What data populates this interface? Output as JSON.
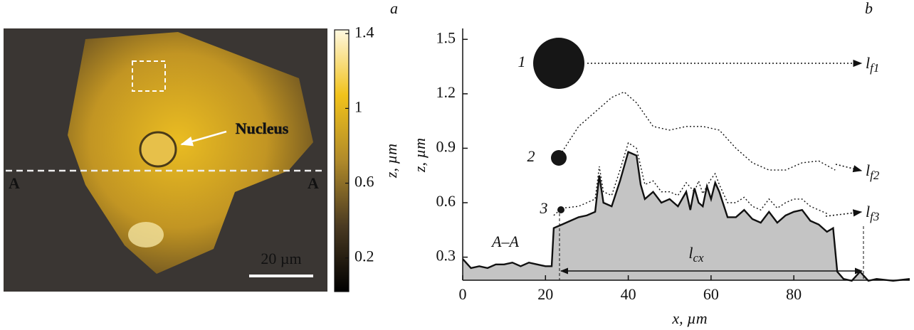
{
  "chart_data": [
    {
      "type": "image",
      "panel": "a",
      "labels": {
        "nucleus": "Nucleus",
        "section_left": "A",
        "section_right": "A",
        "scale_bar": "20 µm"
      },
      "colorbar": {
        "label": "z, µm",
        "lim": [
          0.02,
          1.42
        ],
        "ticks": [
          0.2,
          0.6,
          1.0,
          1.4
        ],
        "colors": [
          "#000000",
          "#4a3a22",
          "#b08a2a",
          "#f1c21b",
          "#fff8e0"
        ]
      }
    },
    {
      "type": "line",
      "panel": "b",
      "xlabel": "x, µm",
      "ylabel": "z, µm",
      "xlim": [
        0,
        108
      ],
      "ylim": [
        0.173,
        1.56
      ],
      "xticks": [
        0,
        20,
        40,
        60,
        80
      ],
      "yticks": [
        0.3,
        0.6,
        0.9,
        1.2,
        1.5
      ],
      "section_label": "A–A",
      "length_label": {
        "main": "l",
        "sub": "cx"
      },
      "probes": [
        {
          "label": "1",
          "arrow": "l",
          "sub": "f1"
        },
        {
          "label": "2",
          "arrow": "l",
          "sub": "f2"
        },
        {
          "label": "3",
          "arrow": "l",
          "sub": "f3"
        }
      ],
      "series": [
        {
          "color": "#111111",
          "fill": "#c4c4c4",
          "style": "solid",
          "x": [
            0,
            2,
            4,
            6,
            8,
            10,
            12,
            14,
            16,
            18,
            20,
            21.5,
            22,
            24,
            26,
            28,
            30,
            32,
            33,
            34,
            36,
            38,
            40,
            42,
            43,
            44,
            46,
            48,
            50,
            52,
            54,
            55,
            56,
            57,
            58,
            59,
            60,
            61,
            62,
            64,
            66,
            68,
            70,
            72,
            74,
            76,
            78,
            80,
            82,
            84,
            86,
            88,
            89.5,
            90.5,
            92,
            94,
            96,
            98,
            100,
            104,
            108
          ],
          "values": [
            0.29,
            0.24,
            0.25,
            0.24,
            0.26,
            0.26,
            0.27,
            0.25,
            0.27,
            0.26,
            0.25,
            0.25,
            0.46,
            0.48,
            0.5,
            0.52,
            0.53,
            0.55,
            0.75,
            0.6,
            0.58,
            0.72,
            0.88,
            0.86,
            0.7,
            0.62,
            0.66,
            0.6,
            0.62,
            0.58,
            0.66,
            0.56,
            0.68,
            0.6,
            0.58,
            0.69,
            0.62,
            0.71,
            0.66,
            0.52,
            0.52,
            0.56,
            0.51,
            0.49,
            0.55,
            0.49,
            0.53,
            0.55,
            0.56,
            0.5,
            0.48,
            0.44,
            0.46,
            0.22,
            0.18,
            0.17,
            0.22,
            0.17,
            0.18,
            0.17,
            0.18
          ]
        },
        {
          "color": "#111111",
          "style": "dotted",
          "x": [
            24,
            28,
            32,
            36,
            39,
            42,
            46,
            50,
            54,
            58,
            62,
            66,
            70,
            74,
            78,
            82,
            86,
            90
          ],
          "values": [
            0.88,
            1.02,
            1.1,
            1.18,
            1.21,
            1.15,
            1.02,
            1.0,
            1.02,
            1.02,
            1.0,
            0.9,
            0.82,
            0.78,
            0.78,
            0.82,
            0.83,
            0.78
          ]
        },
        {
          "color": "#111111",
          "style": "dotted",
          "x": [
            22,
            24,
            28,
            32,
            33,
            34,
            36,
            38,
            40,
            42,
            44,
            46,
            48,
            50,
            52,
            54,
            56,
            57,
            58,
            60,
            61,
            62,
            64,
            66,
            68,
            70,
            72,
            74,
            76,
            78,
            80,
            82,
            84,
            86,
            88
          ],
          "values": [
            0.53,
            0.57,
            0.58,
            0.62,
            0.8,
            0.66,
            0.64,
            0.78,
            0.93,
            0.9,
            0.7,
            0.72,
            0.66,
            0.66,
            0.64,
            0.71,
            0.66,
            0.72,
            0.65,
            0.73,
            0.76,
            0.7,
            0.6,
            0.6,
            0.63,
            0.58,
            0.56,
            0.62,
            0.57,
            0.6,
            0.62,
            0.62,
            0.58,
            0.56,
            0.54
          ]
        }
      ]
    }
  ]
}
